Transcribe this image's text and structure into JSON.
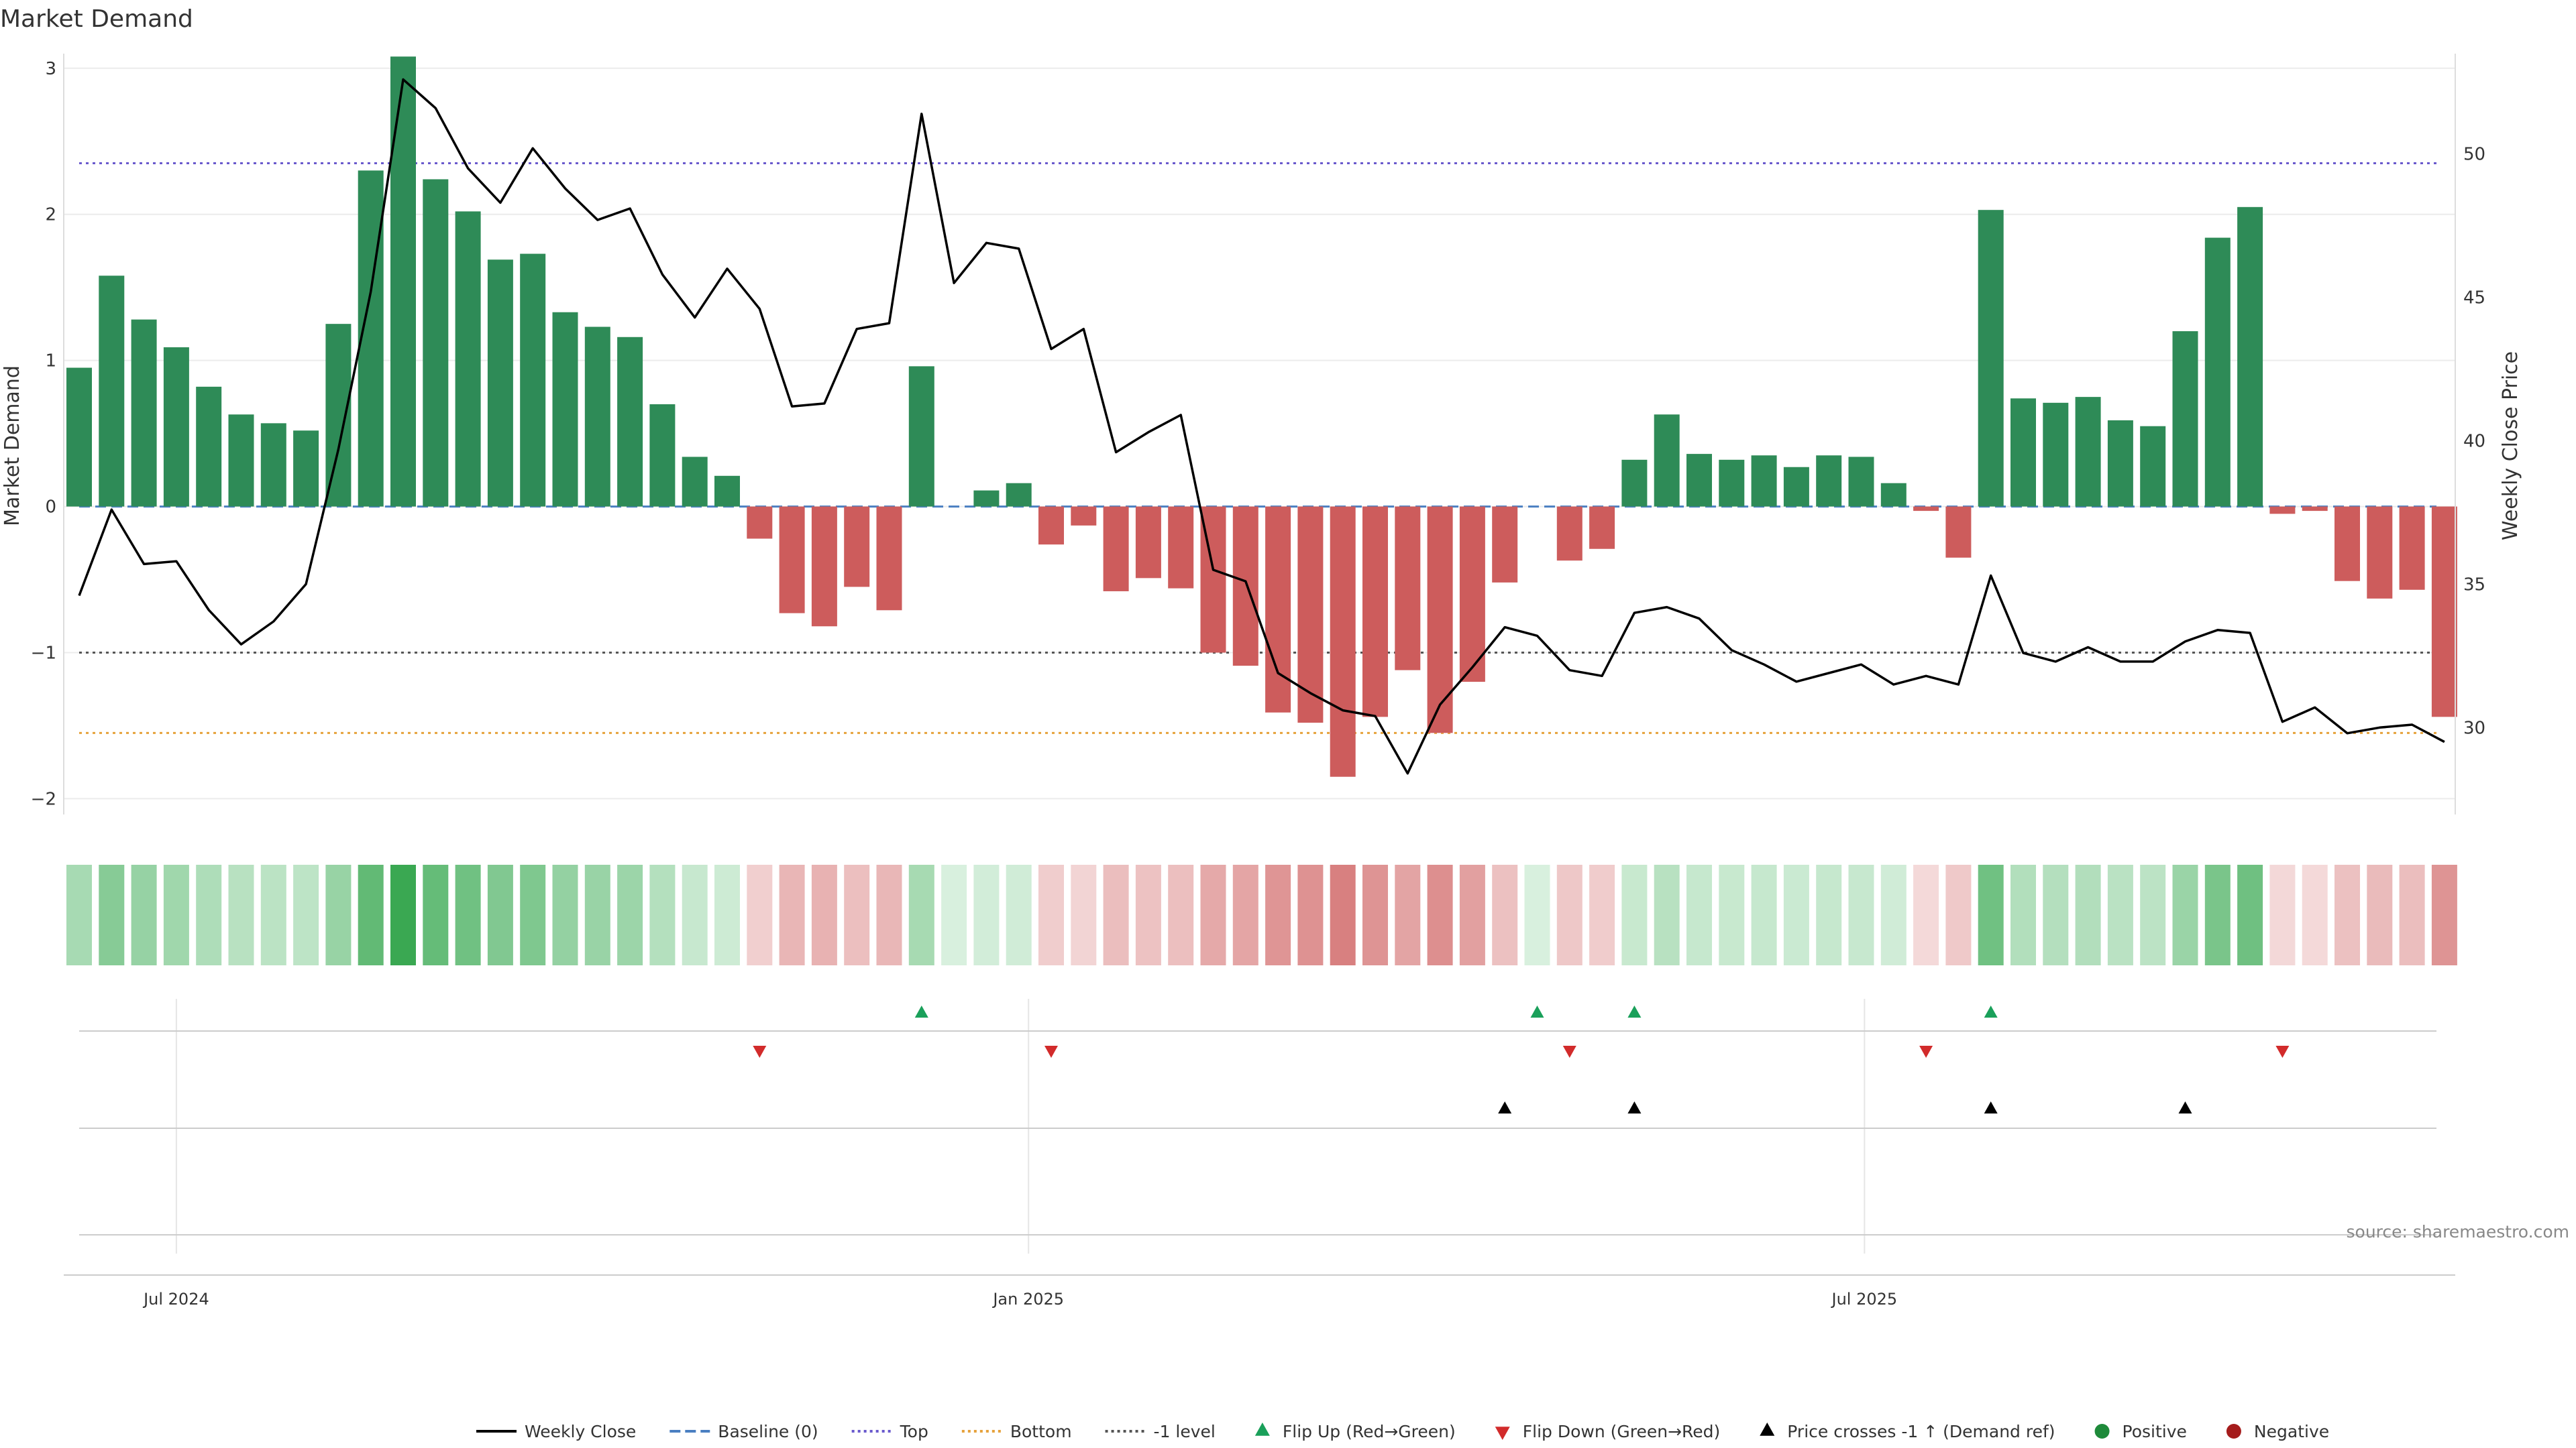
{
  "chart_data": {
    "type": "bar",
    "title": "Market Demand",
    "ylabel_left": "Market Demand",
    "ylabel_right": "Weekly Close Price",
    "ylim_left": [
      -2.2,
      3.1
    ],
    "yticks_left": [
      -2,
      -1,
      0,
      1,
      2,
      3
    ],
    "ylim_right": [
      26.5,
      53.5
    ],
    "yticks_right": [
      30,
      35,
      40,
      45,
      50
    ],
    "x_tick_labels": [
      {
        "label": "Jul 2024",
        "index": 3
      },
      {
        "label": "Jan 2025",
        "index": 29.3
      },
      {
        "label": "Jul 2025",
        "index": 55.1
      }
    ],
    "weeks": 74,
    "demand": [
      0.95,
      1.58,
      1.28,
      1.09,
      0.82,
      0.63,
      0.57,
      0.52,
      1.25,
      2.3,
      3.08,
      2.24,
      2.02,
      1.69,
      1.73,
      1.33,
      1.23,
      1.16,
      0.7,
      0.34,
      0.21,
      -0.22,
      -0.73,
      -0.82,
      -0.55,
      -0.71,
      0.96,
      0,
      0.11,
      0.16,
      -0.26,
      -0.13,
      -0.58,
      -0.49,
      -0.56,
      -1.0,
      -1.09,
      -1.41,
      -1.48,
      -1.85,
      -1.44,
      -1.12,
      -1.55,
      -1.2,
      -0.52,
      0,
      -0.37,
      -0.29,
      0.32,
      0.63,
      0.36,
      0.32,
      0.35,
      0.27,
      0.35,
      0.34,
      0.16,
      -0.03,
      -0.35,
      2.03,
      0.74,
      0.71,
      0.75,
      0.59,
      0.55,
      1.2,
      1.84,
      2.05,
      -0.05,
      -0.03,
      -0.51,
      -0.63,
      -0.57,
      -1.44
    ],
    "close": [
      34.6,
      37.6,
      35.7,
      35.8,
      34.1,
      32.9,
      33.7,
      35.0,
      39.7,
      45.2,
      52.6,
      51.6,
      49.5,
      48.3,
      50.2,
      48.8,
      47.7,
      48.1,
      45.8,
      44.3,
      46.0,
      44.6,
      41.2,
      41.3,
      43.9,
      44.1,
      51.4,
      45.5,
      46.9,
      46.7,
      43.2,
      43.9,
      39.6,
      40.3,
      40.9,
      35.5,
      35.1,
      31.9,
      31.2,
      30.6,
      30.4,
      28.4,
      30.8,
      32.1,
      33.5,
      33.2,
      32.0,
      31.8,
      34.0,
      34.2,
      33.8,
      32.7,
      32.2,
      31.6,
      31.9,
      32.2,
      31.5,
      31.8,
      31.5,
      35.3,
      32.6,
      32.3,
      32.8,
      32.3,
      32.3,
      33.0,
      33.4,
      33.3,
      30.2,
      30.7,
      29.8,
      30.0,
      30.1,
      29.5
    ],
    "top_level": 2.35,
    "bottom_level": -1.55,
    "minus_one_level": -1.0,
    "flip_up_idx": [
      26,
      45,
      48,
      59
    ],
    "flip_down_idx": [
      21,
      30,
      46,
      57,
      68
    ],
    "price_cross_idx": [
      44,
      48,
      59,
      65
    ],
    "colors": {
      "positive": "#2e8b57",
      "negative": "#cd5c5c",
      "close_line": "#000000",
      "baseline": "#4a7fc1",
      "top": "#6a5acd",
      "bottom": "#e6a23c",
      "minus_one": "#555555",
      "flip_up": "#1aa05a",
      "flip_down": "#d22b2b",
      "price_cross": "#000000",
      "legend_positive": "#1e8a3a",
      "legend_negative": "#a51c1c"
    },
    "legend": [
      {
        "label": "Weekly Close",
        "kind": "solid-line",
        "icon": "line-icon"
      },
      {
        "label": "Baseline (0)",
        "kind": "dash-line",
        "icon": "dashed-line-icon"
      },
      {
        "label": "Top",
        "kind": "dot-line-top",
        "icon": "dotted-line-icon"
      },
      {
        "label": "Bottom",
        "kind": "dot-line-bottom",
        "icon": "dotted-line-icon"
      },
      {
        "label": "-1 level",
        "kind": "dot-line-minus",
        "icon": "dotted-line-icon"
      },
      {
        "label": "Flip Up (Red→Green)",
        "kind": "tri-up-green",
        "icon": "triangle-up-icon"
      },
      {
        "label": "Flip Down (Green→Red)",
        "kind": "tri-down-red",
        "icon": "triangle-down-icon"
      },
      {
        "label": "Price crosses -1 ↑ (Demand ref)",
        "kind": "tri-up-black",
        "icon": "triangle-up-icon"
      },
      {
        "label": "Positive",
        "kind": "dot-green",
        "icon": "circle-icon"
      },
      {
        "label": "Negative",
        "kind": "dot-red",
        "icon": "circle-icon"
      }
    ],
    "source": "source: sharemaestro.com"
  }
}
